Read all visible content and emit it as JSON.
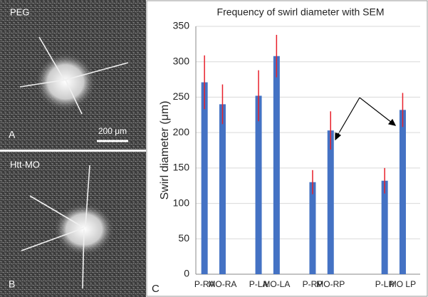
{
  "panels": {
    "a_label": "PEG",
    "a_letter": "A",
    "scale_bar": "200 μm",
    "b_label": "Htt-MO",
    "b_letter": "B",
    "c_letter": "C"
  },
  "chart_data": {
    "type": "bar",
    "title": "Frequency of swirl diameter with SEM",
    "y_label": "Swirl diameter (μm)",
    "categories": [
      "P-RA",
      "MO-RA",
      null,
      "P-LA",
      "MO-LA",
      null,
      "P-RP",
      "MO-RP",
      null,
      null,
      "P-LP",
      "MO LP"
    ],
    "values": [
      271,
      240,
      null,
      252,
      308,
      null,
      130,
      203,
      null,
      null,
      132,
      232
    ],
    "errors": [
      38,
      28,
      null,
      36,
      30,
      null,
      17,
      27,
      null,
      null,
      18,
      24
    ],
    "color": "#4472c4",
    "error_color": "#e8202a",
    "ylim": [
      0,
      350
    ],
    "yticks": [
      0,
      50,
      100,
      150,
      200,
      250,
      300,
      350
    ],
    "grid": true
  }
}
